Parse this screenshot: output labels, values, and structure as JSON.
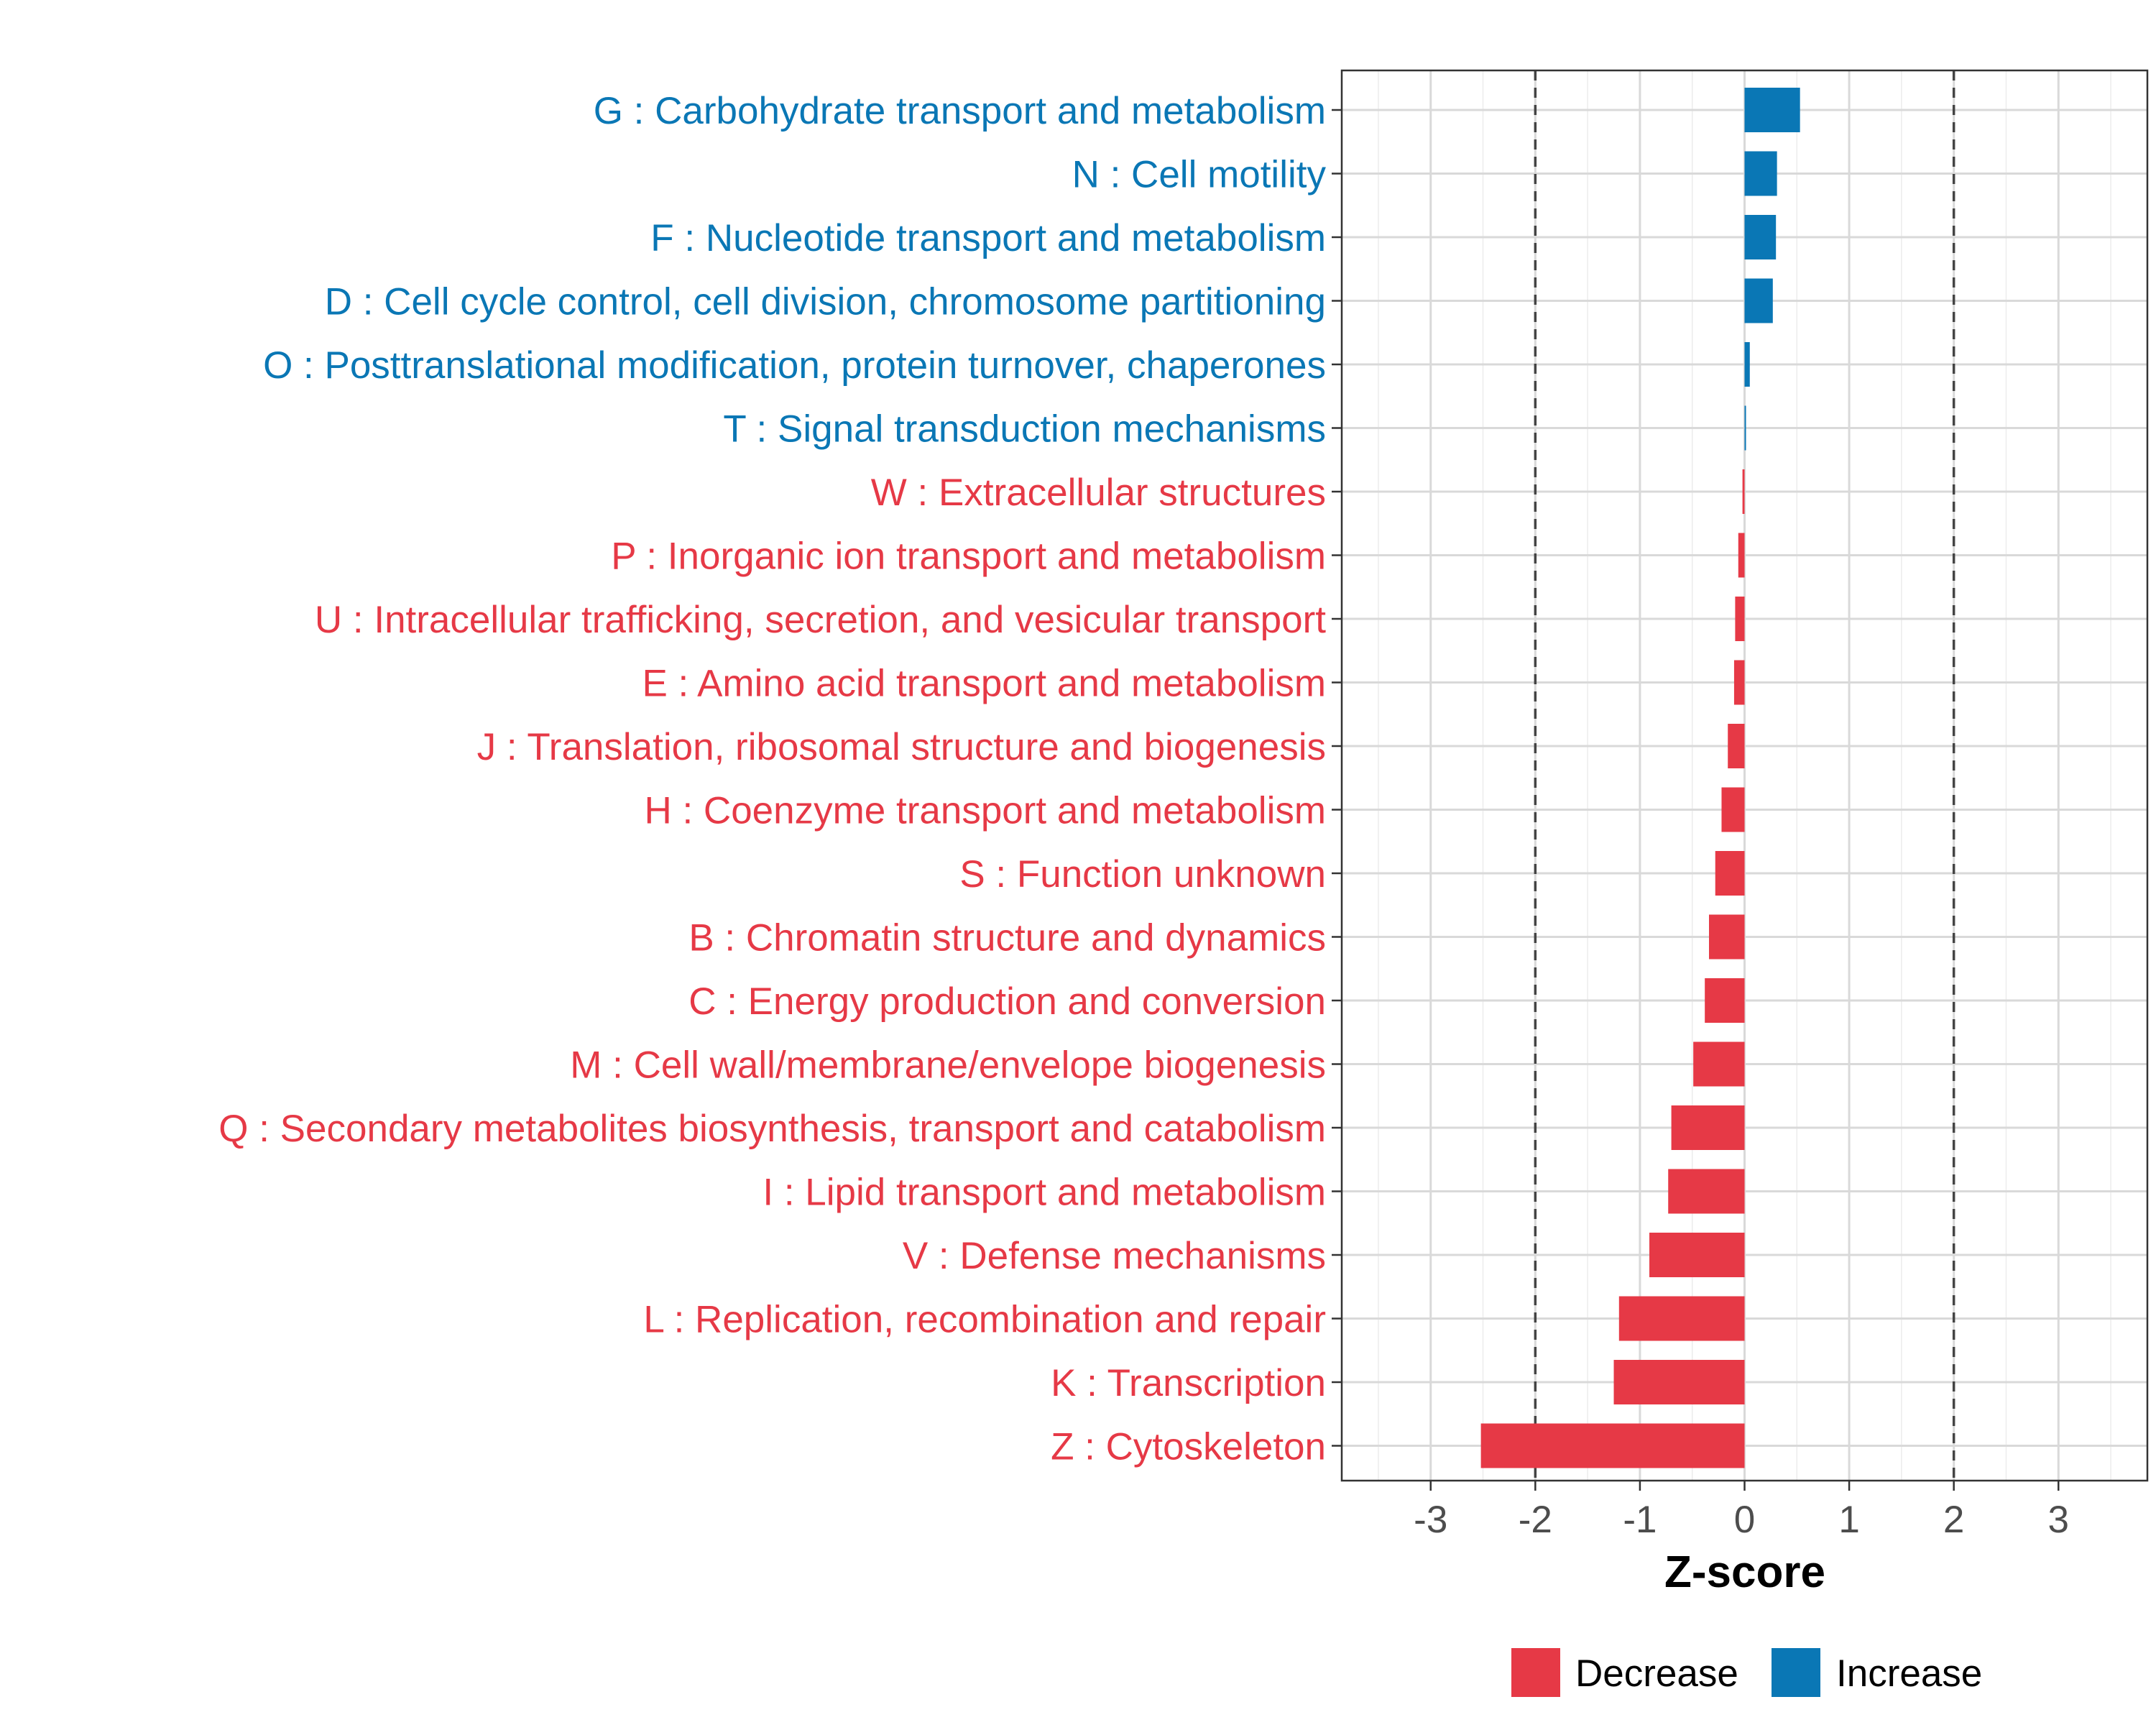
{
  "chart_data": {
    "type": "bar",
    "orientation": "horizontal",
    "title": "",
    "xlabel": "Z-score",
    "ylabel": "",
    "xlim": [
      -3.85,
      3.85
    ],
    "xticks": [
      -3,
      -2,
      -1,
      0,
      1,
      2,
      3
    ],
    "xtick_labels": [
      "-3",
      "-2",
      "-1",
      "0",
      "1",
      "2",
      "3"
    ],
    "grid": true,
    "threshold_lines": [
      -2,
      2
    ],
    "categories": [
      "G : Carbohydrate transport and metabolism",
      "N : Cell motility",
      "F : Nucleotide transport and metabolism",
      "D : Cell cycle control, cell division, chromosome partitioning",
      "O : Posttranslational modification, protein turnover, chaperones",
      "T : Signal transduction mechanisms",
      "W : Extracellular structures",
      "P : Inorganic ion transport and metabolism",
      "U : Intracellular trafficking, secretion, and vesicular transport",
      "E : Amino acid transport and metabolism",
      "J : Translation, ribosomal structure and biogenesis",
      "H : Coenzyme transport and metabolism",
      "S : Function unknown",
      "B : Chromatin structure and dynamics",
      "C : Energy production and conversion",
      "M : Cell wall/membrane/envelope biogenesis",
      "Q : Secondary metabolites biosynthesis, transport and catabolism",
      "I : Lipid transport and metabolism",
      "V : Defense mechanisms",
      "L : Replication, recombination and repair",
      "K : Transcription",
      "Z : Cytoskeleton"
    ],
    "values": [
      0.53,
      0.31,
      0.3,
      0.27,
      0.05,
      0.01,
      -0.02,
      -0.06,
      -0.09,
      -0.1,
      -0.16,
      -0.22,
      -0.28,
      -0.34,
      -0.38,
      -0.49,
      -0.7,
      -0.73,
      -0.91,
      -1.2,
      -1.25,
      -2.52
    ],
    "series_colors": {
      "Decrease": "#E63946",
      "Increase": "#0A77B5"
    },
    "legend": {
      "placement": "bottom",
      "entries": [
        "Decrease",
        "Increase"
      ]
    }
  }
}
